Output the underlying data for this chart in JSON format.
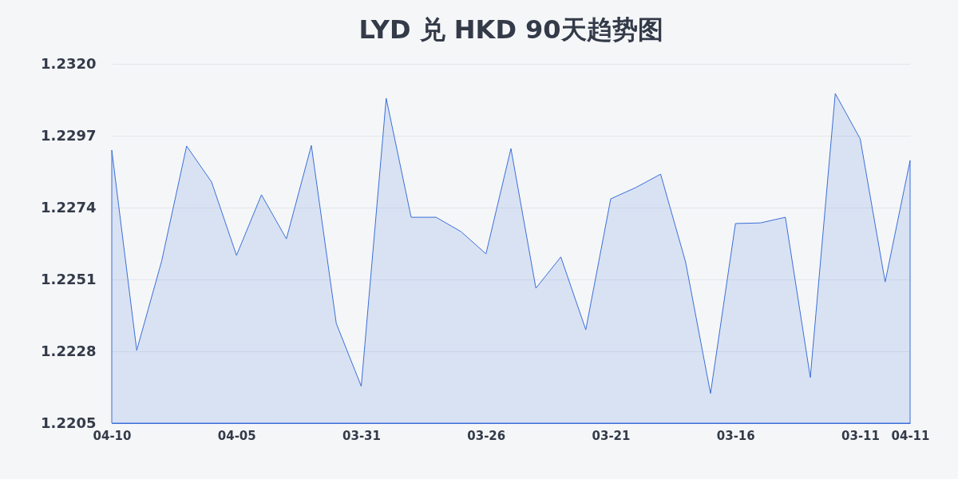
{
  "chart_data": {
    "type": "area",
    "title": "LYD 兑 HKD 90天趋势图",
    "categories": [
      "04-10",
      null,
      null,
      null,
      null,
      "04-05",
      null,
      null,
      null,
      null,
      "03-31",
      null,
      null,
      null,
      null,
      "03-26",
      null,
      null,
      null,
      null,
      "03-21",
      null,
      null,
      null,
      null,
      "03-16",
      null,
      null,
      null,
      null,
      "03-11",
      null,
      "04-11"
    ],
    "series": [
      {
        "color": "#3a6fd8",
        "values": [
          1.22924,
          1.22283,
          1.22569,
          1.22937,
          1.22822,
          1.22587,
          1.22781,
          1.2264,
          1.22939,
          1.22369,
          1.22168,
          1.2309,
          1.22709,
          1.22709,
          1.22663,
          1.22592,
          1.22929,
          1.22482,
          1.22582,
          1.22349,
          1.22768,
          1.22804,
          1.22847,
          1.22566,
          1.22145,
          1.22689,
          1.22691,
          1.22709,
          1.22196,
          1.23105,
          1.2296,
          1.22502,
          1.22891
        ]
      }
    ],
    "ylim": [
      1.2205,
      1.232
    ],
    "yticks": [
      1.2205,
      1.2228,
      1.2251,
      1.2274,
      1.2297,
      {
        "value": 1.232,
        "label": "1.2320"
      }
    ],
    "grid": "y"
  }
}
